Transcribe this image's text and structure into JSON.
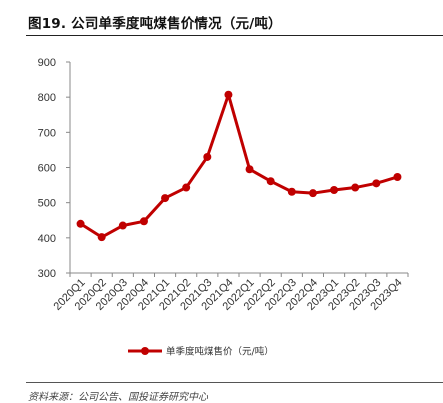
{
  "figure": {
    "title": "图19. 公司单季度吨煤售价情况（元/吨）",
    "source": "资料来源：公司公告、国投证券研究中心"
  },
  "chart_data": {
    "type": "line",
    "title": "",
    "xlabel": "",
    "ylabel": "",
    "categories": [
      "2020Q1",
      "2020Q2",
      "2020Q3",
      "2020Q4",
      "2021Q1",
      "2021Q2",
      "2021Q3",
      "2021Q4",
      "2022Q1",
      "2022Q2",
      "2022Q3",
      "2022Q4",
      "2023Q1",
      "2023Q2",
      "2023Q3",
      "2023Q4"
    ],
    "series": [
      {
        "name": "单季度吨煤售价（元/吨）",
        "color": "#c00000",
        "values": [
          440,
          402,
          435,
          447,
          513,
          543,
          630,
          807,
          595,
          561,
          531,
          527,
          536,
          543,
          555,
          573
        ]
      }
    ],
    "ylim": [
      300,
      900
    ],
    "yticks": [
      300,
      400,
      500,
      600,
      700,
      800,
      900
    ],
    "grid": false,
    "legend_position": "bottom"
  }
}
